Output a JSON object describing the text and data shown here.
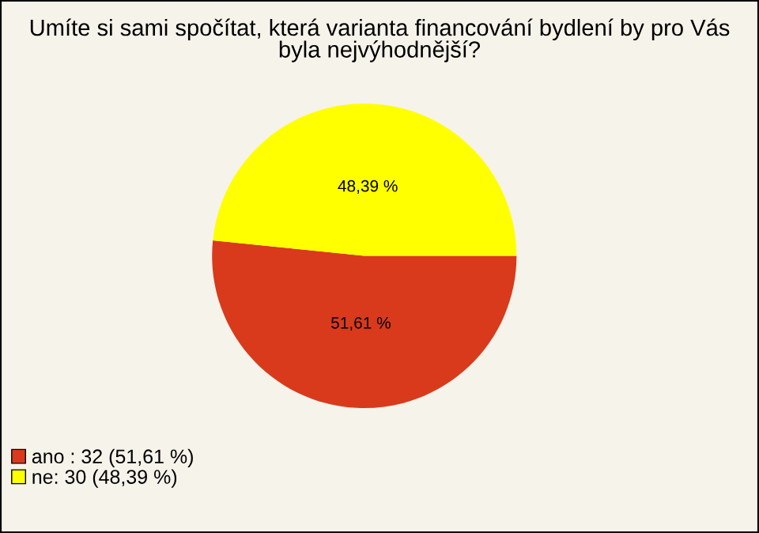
{
  "chart_data": {
    "type": "pie",
    "title": "Umíte si sami spočítat, která varianta financování bydlení by pro Vás\nbyla nejvýhodnější?",
    "categories": [
      "ano : 32 (51,61 %)",
      "ne: 30 (48,39 %)"
    ],
    "values": [
      51.61,
      48.39
    ],
    "colors": [
      "#d93a1c",
      "#ffff00"
    ],
    "value_labels": [
      "51,61 %",
      "48,39 %"
    ],
    "legend": "bottom left"
  }
}
